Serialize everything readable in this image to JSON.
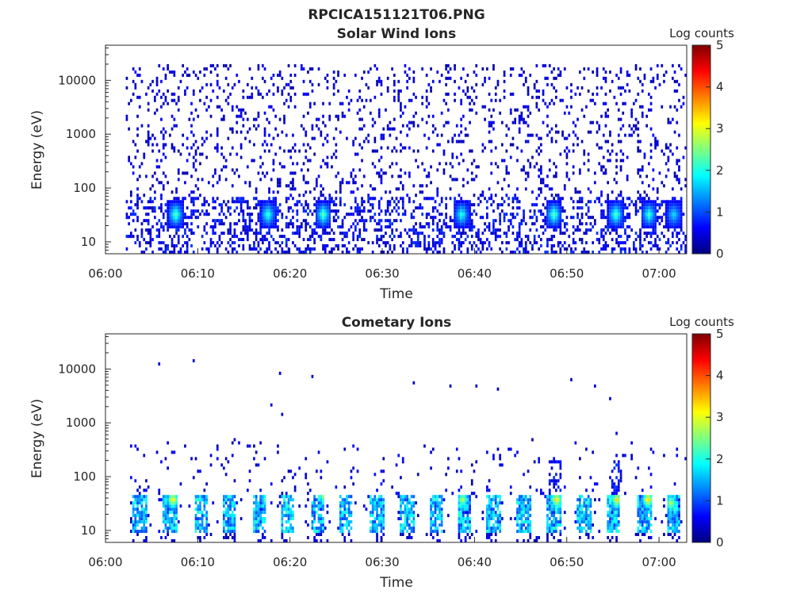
{
  "figure_title": "RPCICA151121T06.PNG",
  "colormap": [
    "#00007f",
    "#0000ff",
    "#007fff",
    "#00ffff",
    "#7fff7f",
    "#ffff00",
    "#ff7f00",
    "#ff0000",
    "#7f0000"
  ],
  "chart_data": [
    {
      "type": "heatmap",
      "title": "Solar Wind Ions",
      "xlabel": "Time",
      "ylabel": "Energy (eV)",
      "x_ticks": [
        "06:00",
        "06:10",
        "06:20",
        "06:30",
        "06:40",
        "06:50",
        "07:00"
      ],
      "x_range_minutes": [
        0,
        63
      ],
      "y_scale": "log",
      "y_range": [
        6,
        45000
      ],
      "y_ticks": [
        10,
        100,
        1000,
        10000
      ],
      "y_tick_labels": [
        "10",
        "100",
        "1000",
        "10000"
      ],
      "colorbar": {
        "label": "Log counts",
        "range": [
          0,
          5
        ],
        "ticks": [
          "0",
          "1",
          "2",
          "3",
          "4",
          "5"
        ]
      },
      "description": "Sparse scattered low counts (log ~0-0.5) across all energies 100-20000 eV throughout 06:02-07:03; denser counts below ~50 eV with brief enhancements to log ~1.5-2 near 30 eV",
      "enhancements": [
        {
          "time_min": 7.5,
          "energy_ev": 30,
          "log_counts": 1.8
        },
        {
          "time_min": 17.5,
          "energy_ev": 30,
          "log_counts": 1.6
        },
        {
          "time_min": 23.5,
          "energy_ev": 30,
          "log_counts": 1.8
        },
        {
          "time_min": 38.5,
          "energy_ev": 30,
          "log_counts": 1.5
        },
        {
          "time_min": 48.5,
          "energy_ev": 30,
          "log_counts": 1.8
        },
        {
          "time_min": 55.2,
          "energy_ev": 30,
          "log_counts": 1.8
        },
        {
          "time_min": 58.8,
          "energy_ev": 30,
          "log_counts": 1.6
        },
        {
          "time_min": 61.5,
          "energy_ev": 30,
          "log_counts": 1.2
        }
      ]
    },
    {
      "type": "heatmap",
      "title": "Cometary Ions",
      "xlabel": "Time",
      "ylabel": "Energy (eV)",
      "x_ticks": [
        "06:00",
        "06:10",
        "06:20",
        "06:30",
        "06:40",
        "06:50",
        "07:00"
      ],
      "x_range_minutes": [
        0,
        63
      ],
      "y_scale": "log",
      "y_range": [
        6,
        45000
      ],
      "y_ticks": [
        10,
        100,
        1000,
        10000
      ],
      "y_tick_labels": [
        "10",
        "100",
        "1000",
        "10000"
      ],
      "colorbar": {
        "label": "Log counts",
        "range": [
          0,
          5
        ],
        "ticks": [
          "0",
          "1",
          "2",
          "3",
          "4",
          "5"
        ]
      },
      "description": "Periodic bursts of cometary ions at ~10-40 eV roughly every 3 minutes, peaking at log ~2.5-3 near 30-40 eV; sparse isolated counts up to ~13000 eV",
      "bursts_minutes": [
        3.6,
        6.9,
        10.2,
        13.3,
        16.6,
        19.6,
        22.9,
        26.0,
        29.3,
        32.6,
        35.8,
        38.8,
        42.0,
        45.2,
        48.5,
        51.8,
        55.0,
        58.3,
        61.5
      ],
      "burst_peaks": [
        {
          "time_min": 7.2,
          "energy_ev": 35,
          "log_counts": 2.9
        },
        {
          "time_min": 17.5,
          "energy_ev": 35,
          "log_counts": 2.6
        },
        {
          "time_min": 23.7,
          "energy_ev": 40,
          "log_counts": 2.8
        },
        {
          "time_min": 38.6,
          "energy_ev": 35,
          "log_counts": 2.4
        },
        {
          "time_min": 48.8,
          "energy_ev": 35,
          "log_counts": 2.9
        },
        {
          "time_min": 55.3,
          "energy_ev": 35,
          "log_counts": 2.8
        },
        {
          "time_min": 58.7,
          "energy_ev": 35,
          "log_counts": 3.0
        },
        {
          "time_min": 61.2,
          "energy_ev": 30,
          "log_counts": 2.4
        }
      ]
    }
  ]
}
